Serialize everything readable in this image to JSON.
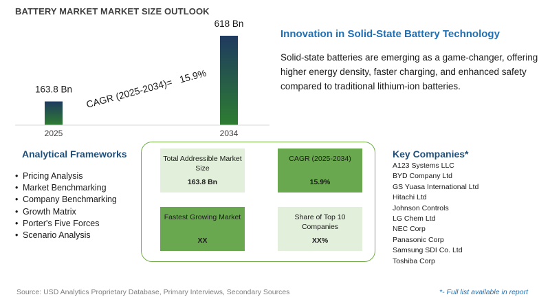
{
  "title": "BATTERY MARKET MARKET SIZE OUTLOOK",
  "chart_data": {
    "type": "bar",
    "categories": [
      "2025",
      "2034"
    ],
    "values": [
      163.8,
      618
    ],
    "data_labels": [
      "163.8 Bn",
      "618 Bn"
    ],
    "annotation": "CAGR (2025-2034)=   15.9%",
    "title": "",
    "xlabel": "",
    "ylabel": "",
    "ylim": [
      0,
      618
    ],
    "grid": false,
    "legend": "none",
    "bar_color": "#2e7d32",
    "bar_color_top": "#1f3a5f"
  },
  "innovation": {
    "title": "Innovation in Solid-State Battery Technology",
    "text": "Solid-state batteries are emerging as a game-changer, offering higher energy density, faster charging, and enhanced safety compared to traditional lithium-ion batteries."
  },
  "frameworks": {
    "title": "Analytical Frameworks",
    "bullet": "•",
    "items": [
      "Pricing Analysis",
      "Market Benchmarking",
      "Company Benchmarking",
      "Growth Matrix",
      "Porter's Five Forces",
      "Scenario Analysis"
    ]
  },
  "cards": [
    {
      "label": "Total Addressible Market Size",
      "value": "163.8 Bn",
      "style": "light"
    },
    {
      "label": "CAGR (2025-2034)",
      "value": "15.9%",
      "style": "dark"
    },
    {
      "label": "Fastest Growing Market",
      "value": "XX",
      "style": "dark"
    },
    {
      "label": "Share of Top 10 Companies",
      "value": "XX%",
      "style": "light"
    }
  ],
  "companies": {
    "title": "Key Companies*",
    "items": [
      "A123 Systems LLC",
      "BYD Company Ltd",
      "GS Yuasa International Ltd",
      "Hitachi Ltd",
      "Johnson Controls",
      "LG Chem Ltd",
      "NEC Corp",
      "Panasonic Corp",
      "Samsung SDI Co. Ltd",
      "Toshiba Corp"
    ]
  },
  "footer": {
    "source": "Source: USD Analytics Proprietary Database, Primary Interviews, Secondary Sources",
    "note": "*- Full list available in report"
  },
  "colors": {
    "accent_blue": "#1f6fb2",
    "heading_navy": "#1f4e79",
    "green_dark": "#6aa84f",
    "green_light": "#e2efda",
    "border_green": "#70ad47"
  }
}
